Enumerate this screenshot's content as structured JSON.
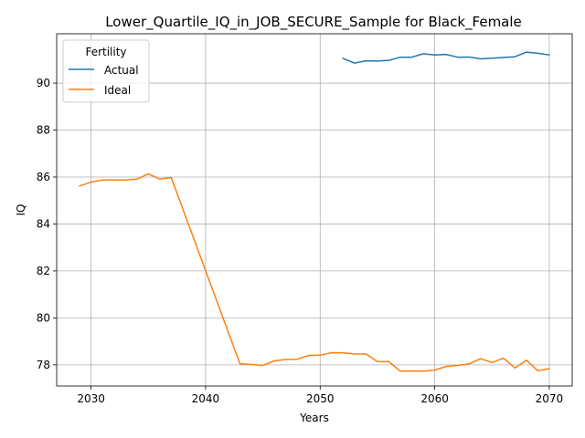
{
  "chart_data": {
    "type": "line",
    "title": "Lower_Quartile_IQ_in_JOB_SECURE_Sample for Black_Female",
    "xlabel": "Years",
    "ylabel": "IQ",
    "xlim": [
      2027,
      2072
    ],
    "ylim": [
      77.1,
      92.1
    ],
    "xticks": [
      2030,
      2040,
      2050,
      2060,
      2070
    ],
    "yticks": [
      78,
      80,
      82,
      84,
      86,
      88,
      90
    ],
    "grid": true,
    "legend": {
      "title": "Fertility",
      "placement": "top-left"
    },
    "series": [
      {
        "name": "Actual",
        "color": "#1f77b4",
        "x": [
          2052,
          2053,
          2054,
          2055,
          2056,
          2057,
          2058,
          2059,
          2060,
          2061,
          2062,
          2063,
          2064,
          2065,
          2066,
          2067,
          2068,
          2069,
          2070
        ],
        "y": [
          91.05,
          90.85,
          90.95,
          90.94,
          90.97,
          91.1,
          91.1,
          91.25,
          91.2,
          91.22,
          91.1,
          91.11,
          91.03,
          91.06,
          91.09,
          91.12,
          91.32,
          91.27,
          91.2
        ]
      },
      {
        "name": "Ideal",
        "color": "#ff7f0e",
        "x": [
          2029,
          2030,
          2031,
          2032,
          2033,
          2034,
          2035,
          2036,
          2037,
          2043,
          2045,
          2046,
          2047,
          2048,
          2049,
          2050,
          2051,
          2052,
          2053,
          2054,
          2055,
          2056,
          2057,
          2058,
          2059,
          2060,
          2061,
          2062,
          2063,
          2064,
          2065,
          2066,
          2067,
          2068,
          2069,
          2070
        ],
        "y": [
          85.62,
          85.78,
          85.87,
          85.87,
          85.87,
          85.91,
          86.13,
          85.91,
          85.98,
          78.05,
          77.98,
          78.17,
          78.23,
          78.24,
          78.4,
          78.41,
          78.52,
          78.51,
          78.46,
          78.46,
          78.14,
          78.13,
          77.73,
          77.74,
          77.73,
          77.78,
          77.93,
          77.98,
          78.04,
          78.26,
          78.1,
          78.29,
          77.87,
          78.2,
          77.75,
          77.84
        ]
      }
    ]
  }
}
